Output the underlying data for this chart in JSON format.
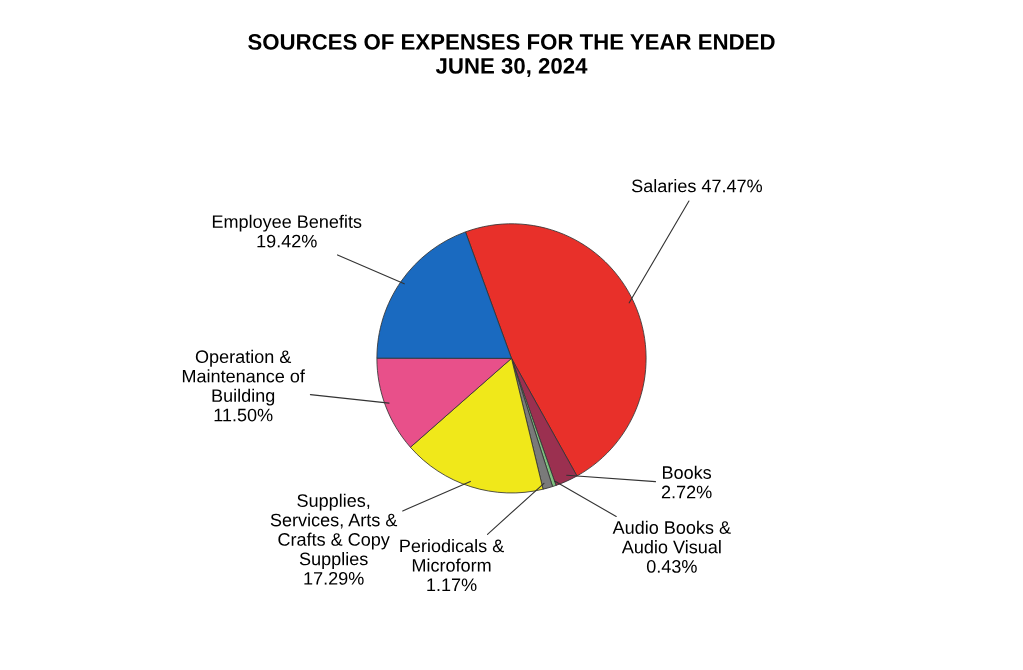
{
  "chart_data": {
    "type": "pie",
    "title": "SOURCES OF EXPENSES FOR THE YEAR ENDED\nJUNE 30, 2024",
    "categories": [
      "Salaries",
      "Books",
      "Audio Books &\nAudio Visual",
      "Periodicals &\nMicroform",
      "Supplies,\nServices, Arts &\nCrafts & Copy\nSupplies",
      "Operation &\nMaintenance of\nBuilding",
      "Employee Benefits"
    ],
    "values": [
      47.47,
      2.72,
      0.43,
      1.17,
      17.29,
      11.5,
      19.42
    ],
    "value_labels": [
      "47.47%",
      "2.72%",
      "0.43%",
      "1.17%",
      "17.29%",
      "11.50%",
      "19.42%"
    ],
    "colors": [
      "#e8302a",
      "#9b3050",
      "#7fbf7f",
      "#7a7a7a",
      "#f0e81a",
      "#e8508a",
      "#1a6ac0"
    ]
  }
}
